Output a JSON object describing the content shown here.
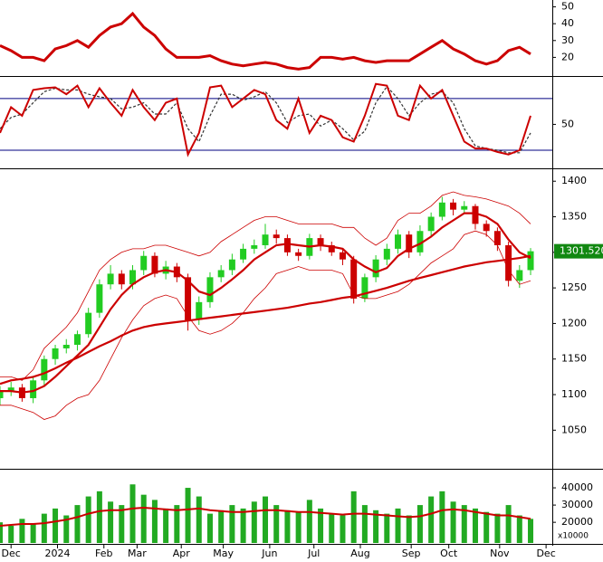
{
  "chart_data": [
    {
      "type": "line",
      "ylim": [
        10,
        53
      ],
      "yticks": [
        20,
        30,
        40,
        50
      ],
      "xlim": [
        0,
        249
      ],
      "x": [
        0,
        5,
        10,
        15,
        20,
        25,
        30,
        35,
        40,
        45,
        50,
        55,
        60,
        65,
        70,
        75,
        80,
        85,
        90,
        95,
        100,
        105,
        110,
        115,
        120,
        125,
        130,
        135,
        140,
        145,
        150,
        155,
        160,
        165,
        170,
        175,
        180,
        185,
        190,
        195,
        200,
        205,
        210,
        215,
        220,
        225,
        230,
        235,
        240
      ],
      "series": [
        {
          "color": "#cc0000",
          "width": 3,
          "values": [
            27,
            24,
            20,
            20,
            18,
            25,
            27,
            30,
            26,
            33,
            38,
            40,
            46,
            38,
            33,
            25,
            20,
            20,
            20,
            21,
            18,
            16,
            15,
            16,
            17,
            16,
            14,
            13,
            14,
            20,
            20,
            19,
            20,
            18,
            17,
            18,
            18,
            18,
            22,
            26,
            30,
            25,
            22,
            18,
            16,
            18,
            24,
            26,
            22
          ]
        }
      ]
    },
    {
      "type": "line",
      "ylim": [
        0,
        103
      ],
      "yticks": [
        50
      ],
      "levels": [
        20,
        80
      ],
      "xlim": [
        0,
        249
      ],
      "x": [
        0,
        5,
        10,
        15,
        20,
        25,
        30,
        35,
        40,
        45,
        50,
        55,
        60,
        65,
        70,
        75,
        80,
        85,
        90,
        95,
        100,
        105,
        110,
        115,
        120,
        125,
        130,
        135,
        140,
        145,
        150,
        155,
        160,
        165,
        170,
        175,
        180,
        185,
        190,
        195,
        200,
        205,
        210,
        215,
        220,
        225,
        230,
        235,
        240
      ],
      "series": [
        {
          "color": "#333333",
          "width": 1.2,
          "dash": true,
          "values": [
            45,
            58,
            62,
            75,
            88,
            92,
            90,
            90,
            85,
            82,
            80,
            68,
            70,
            75,
            62,
            62,
            75,
            45,
            30,
            60,
            85,
            85,
            78,
            82,
            88,
            75,
            52,
            60,
            62,
            48,
            55,
            45,
            32,
            42,
            75,
            94,
            80,
            60,
            75,
            85,
            88,
            75,
            45,
            25,
            22,
            20,
            17,
            17,
            40
          ]
        },
        {
          "color": "#cc0000",
          "width": 2,
          "values": [
            40,
            70,
            60,
            90,
            92,
            93,
            85,
            95,
            70,
            92,
            75,
            60,
            90,
            70,
            55,
            75,
            80,
            15,
            40,
            93,
            95,
            70,
            80,
            90,
            85,
            55,
            45,
            80,
            40,
            60,
            55,
            35,
            30,
            60,
            97,
            95,
            60,
            55,
            95,
            80,
            90,
            60,
            30,
            22,
            22,
            18,
            15,
            20,
            60
          ]
        }
      ]
    },
    {
      "type": "candlestick",
      "ylim": [
        997,
        1413
      ],
      "yticks": [
        1050,
        1100,
        1150,
        1200,
        1250,
        1300,
        1350,
        1400
      ],
      "xlim": [
        0,
        249
      ],
      "x": [
        0,
        5,
        10,
        15,
        20,
        25,
        30,
        35,
        40,
        45,
        50,
        55,
        60,
        65,
        70,
        75,
        80,
        85,
        90,
        95,
        100,
        105,
        110,
        115,
        120,
        125,
        130,
        135,
        140,
        145,
        150,
        155,
        160,
        165,
        170,
        175,
        180,
        185,
        190,
        195,
        200,
        205,
        210,
        215,
        220,
        225,
        230,
        235,
        240
      ],
      "open": [
        1095,
        1105,
        1110,
        1095,
        1120,
        1150,
        1165,
        1170,
        1185,
        1215,
        1255,
        1270,
        1255,
        1275,
        1295,
        1270,
        1280,
        1265,
        1205,
        1230,
        1265,
        1275,
        1290,
        1305,
        1310,
        1325,
        1320,
        1300,
        1295,
        1320,
        1310,
        1300,
        1290,
        1235,
        1265,
        1290,
        1305,
        1325,
        1300,
        1330,
        1350,
        1370,
        1360,
        1365,
        1340,
        1330,
        1310,
        1260,
        1275
      ],
      "high": [
        1112,
        1118,
        1115,
        1125,
        1155,
        1170,
        1178,
        1190,
        1222,
        1262,
        1282,
        1275,
        1282,
        1302,
        1300,
        1288,
        1285,
        1270,
        1238,
        1272,
        1282,
        1298,
        1312,
        1318,
        1340,
        1332,
        1325,
        1305,
        1326,
        1325,
        1315,
        1305,
        1295,
        1270,
        1296,
        1312,
        1332,
        1330,
        1338,
        1356,
        1378,
        1375,
        1372,
        1368,
        1345,
        1335,
        1315,
        1282,
        1306
      ],
      "low": [
        1085,
        1098,
        1090,
        1088,
        1112,
        1142,
        1158,
        1162,
        1180,
        1208,
        1248,
        1248,
        1248,
        1268,
        1265,
        1262,
        1258,
        1190,
        1198,
        1222,
        1258,
        1268,
        1285,
        1298,
        1305,
        1312,
        1295,
        1288,
        1290,
        1302,
        1295,
        1282,
        1228,
        1230,
        1258,
        1282,
        1298,
        1292,
        1295,
        1322,
        1345,
        1352,
        1355,
        1332,
        1322,
        1302,
        1252,
        1250,
        1268
      ],
      "close": [
        1105,
        1110,
        1095,
        1120,
        1150,
        1165,
        1170,
        1185,
        1215,
        1255,
        1270,
        1255,
        1275,
        1295,
        1270,
        1280,
        1265,
        1205,
        1230,
        1265,
        1275,
        1290,
        1305,
        1310,
        1325,
        1320,
        1300,
        1295,
        1320,
        1310,
        1300,
        1290,
        1235,
        1265,
        1290,
        1305,
        1325,
        1300,
        1330,
        1350,
        1370,
        1360,
        1365,
        1340,
        1330,
        1310,
        1260,
        1275,
        1301.52
      ],
      "up_color": "#22cc22",
      "down_color": "#cc0000",
      "last_price_label": "1301.520",
      "series": [
        {
          "color": "#cc0000",
          "width": 0.8,
          "values": [
            1125,
            1125,
            1120,
            1135,
            1165,
            1180,
            1195,
            1215,
            1245,
            1275,
            1290,
            1300,
            1305,
            1305,
            1310,
            1310,
            1305,
            1300,
            1295,
            1300,
            1315,
            1325,
            1335,
            1345,
            1350,
            1350,
            1345,
            1340,
            1340,
            1340,
            1340,
            1335,
            1335,
            1320,
            1310,
            1320,
            1345,
            1355,
            1355,
            1365,
            1380,
            1385,
            1380,
            1378,
            1375,
            1370,
            1365,
            1355,
            1340
          ]
        },
        {
          "color": "#cc0000",
          "width": 0.8,
          "values": [
            1085,
            1085,
            1080,
            1075,
            1065,
            1070,
            1085,
            1095,
            1100,
            1120,
            1150,
            1180,
            1205,
            1225,
            1235,
            1240,
            1235,
            1210,
            1190,
            1185,
            1190,
            1200,
            1215,
            1235,
            1250,
            1270,
            1275,
            1280,
            1275,
            1275,
            1275,
            1270,
            1240,
            1235,
            1235,
            1240,
            1245,
            1255,
            1270,
            1285,
            1295,
            1305,
            1325,
            1330,
            1325,
            1310,
            1275,
            1255,
            1260
          ]
        },
        {
          "color": "#cc0000",
          "width": 2.2,
          "values": [
            1105,
            1105,
            1103,
            1105,
            1112,
            1125,
            1140,
            1155,
            1170,
            1195,
            1220,
            1240,
            1255,
            1265,
            1272,
            1275,
            1272,
            1260,
            1245,
            1240,
            1250,
            1262,
            1275,
            1290,
            1300,
            1310,
            1312,
            1310,
            1308,
            1310,
            1308,
            1305,
            1290,
            1280,
            1272,
            1278,
            1295,
            1305,
            1312,
            1322,
            1335,
            1345,
            1355,
            1355,
            1350,
            1340,
            1318,
            1300,
            1292
          ]
        },
        {
          "color": "#cc0000",
          "width": 2.2,
          "values": [
            1115,
            1120,
            1122,
            1125,
            1130,
            1137,
            1145,
            1152,
            1160,
            1168,
            1175,
            1183,
            1190,
            1195,
            1198,
            1200,
            1202,
            1204,
            1206,
            1208,
            1210,
            1212,
            1214,
            1216,
            1218,
            1220,
            1222,
            1225,
            1228,
            1230,
            1233,
            1236,
            1238,
            1242,
            1246,
            1250,
            1255,
            1260,
            1264,
            1268,
            1272,
            1276,
            1280,
            1283,
            1286,
            1288,
            1290,
            1292,
            1295
          ]
        }
      ]
    },
    {
      "type": "bar",
      "ylim": [
        8000,
        50000
      ],
      "yticks": [
        20000,
        30000,
        40000
      ],
      "unit_label": "x10000",
      "xlim": [
        0,
        249
      ],
      "x": [
        0,
        5,
        10,
        15,
        20,
        25,
        30,
        35,
        40,
        45,
        50,
        55,
        60,
        65,
        70,
        75,
        80,
        85,
        90,
        95,
        100,
        105,
        110,
        115,
        120,
        125,
        130,
        135,
        140,
        145,
        150,
        155,
        160,
        165,
        170,
        175,
        180,
        185,
        190,
        195,
        200,
        205,
        210,
        215,
        220,
        225,
        230,
        235,
        240
      ],
      "color": "#22aa22",
      "values": [
        20000,
        18000,
        22000,
        19000,
        25000,
        28000,
        24000,
        30000,
        35000,
        38000,
        32000,
        30000,
        42000,
        36000,
        33000,
        28000,
        30000,
        40000,
        35000,
        25000,
        27000,
        30000,
        28000,
        32000,
        35000,
        30000,
        27000,
        26000,
        33000,
        28000,
        25000,
        24000,
        38000,
        30000,
        27000,
        25000,
        28000,
        24000,
        30000,
        35000,
        38000,
        32000,
        30000,
        28000,
        26000,
        25000,
        30000,
        24000,
        22000
      ],
      "series": [
        {
          "color": "#cc0000",
          "width": 2,
          "values": [
            18000,
            18500,
            19000,
            19000,
            19500,
            20500,
            21500,
            23000,
            25000,
            26500,
            27000,
            27000,
            28000,
            28500,
            28000,
            27500,
            27000,
            27500,
            28000,
            27000,
            26500,
            26000,
            26000,
            26500,
            27000,
            27000,
            26500,
            26000,
            26000,
            25500,
            25000,
            24500,
            25000,
            25000,
            24500,
            24000,
            23500,
            23000,
            23500,
            25000,
            27000,
            27500,
            27000,
            26000,
            25000,
            24000,
            24000,
            23000,
            22000
          ]
        }
      ],
      "xticks": [
        {
          "value": 5,
          "label": "Dec"
        },
        {
          "value": 26,
          "label": "2024"
        },
        {
          "value": 47,
          "label": "Feb"
        },
        {
          "value": 62,
          "label": "Mar"
        },
        {
          "value": 82,
          "label": "Apr"
        },
        {
          "value": 101,
          "label": "May"
        },
        {
          "value": 122,
          "label": "Jun"
        },
        {
          "value": 142,
          "label": "Jul"
        },
        {
          "value": 163,
          "label": "Aug"
        },
        {
          "value": 186,
          "label": "Sep"
        },
        {
          "value": 203,
          "label": "Oct"
        },
        {
          "value": 226,
          "label": "Nov"
        },
        {
          "value": 247,
          "label": "Dec"
        }
      ]
    }
  ]
}
